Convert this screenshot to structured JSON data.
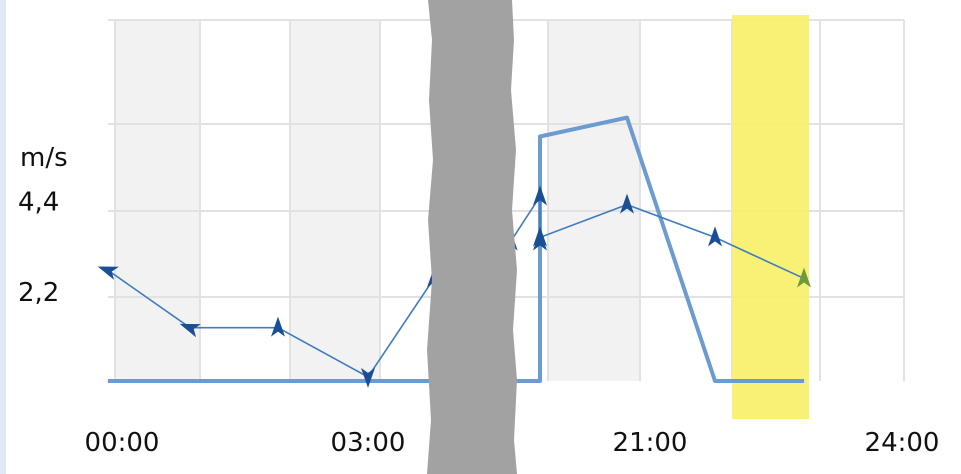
{
  "chart_data": {
    "type": "line",
    "unit_label": "m/s",
    "yticks": [
      "4,4",
      "2,2"
    ],
    "ytick_values": [
      4.4,
      2.2
    ],
    "ylim": [
      0,
      8.8
    ],
    "xticks": [
      "00:00",
      "03:00",
      "21:00",
      "24:00"
    ],
    "grid": true,
    "x_note": "time axis with hidden middle section",
    "series": [
      {
        "style": "thick-line",
        "color": "#6b9bd0",
        "x": [
          "00:00",
          "03:00",
          "05:00",
          "06:00",
          "07:00",
          "09:00",
          "12:00",
          "15:00",
          "17:00",
          "21:00",
          "24:00"
        ],
        "values": [
          0,
          0,
          0,
          0,
          0,
          0,
          0,
          5.96,
          6.42,
          0,
          0
        ]
      },
      {
        "style": "thin-line-with-arrows",
        "color": "#3e7bbf",
        "marker_color": "#1a4f96",
        "x": [
          "00:00",
          "01:00",
          "02:00",
          "03:00",
          "04:00",
          "05:00",
          "06:00",
          "07:00",
          "09:00",
          "12:00",
          "15:00",
          "18:00",
          "21:00",
          "24:00"
        ],
        "values": [
          2.7,
          1.3,
          1.3,
          0.1,
          2.5,
          3.5,
          3.6,
          3.4,
          4.5,
          3.4,
          3.5,
          4.3,
          3.5,
          2.5
        ],
        "direction_arrows": [
          "left",
          "left",
          "up",
          "down",
          "up",
          "up",
          "up",
          "up",
          "up",
          "up",
          "up",
          "up",
          "up",
          "up"
        ]
      }
    ]
  },
  "colors": {
    "grid": "#e2e2e2",
    "band": "#f2f2f2",
    "highlight": "#f7f06a",
    "occluder": "#a2a2a2",
    "frame": "#dfe9f6"
  }
}
